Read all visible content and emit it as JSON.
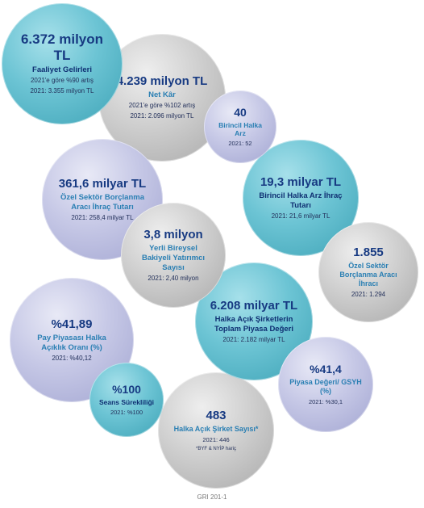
{
  "bubbles": [
    {
      "name": "faaliyet-gelirleri",
      "value": "6.372 milyon TL",
      "label": "Faaliyet Gelirleri",
      "lines": [
        "2021'e göre %90 artış",
        "2021: 3.355 milyon TL"
      ],
      "note": "",
      "style": "teal"
    },
    {
      "name": "net-kar",
      "value": "4.239 milyon TL",
      "label": "Net Kâr",
      "lines": [
        "2021'e göre %102 artış",
        "2021: 2.096 milyon TL"
      ],
      "note": "",
      "style": "grey"
    },
    {
      "name": "birincil-halka-arz",
      "value": "40",
      "label": "Birincil Halka Arz",
      "lines": [
        "2021: 52"
      ],
      "note": "",
      "style": "lav"
    },
    {
      "name": "ozel-sektor-borclanma-tutari",
      "value": "361,6 milyar TL",
      "label": "Özel Sektör Borçlanma Aracı İhraç Tutarı",
      "lines": [
        "2021: 258,4 milyar TL"
      ],
      "note": "",
      "style": "lav"
    },
    {
      "name": "birincil-halka-arz-ihrac-tutari",
      "value": "19,3 milyar TL",
      "label": "Birincil Halka Arz İhraç Tutarı",
      "lines": [
        "2021: 21,6 milyar TL"
      ],
      "note": "",
      "style": "teal"
    },
    {
      "name": "yerli-bireysel-yatirimci",
      "value": "3,8 milyon",
      "label": "Yerli Bireysel Bakiyeli Yatırımcı Sayısı",
      "lines": [
        "2021: 2,40 milyon"
      ],
      "note": "",
      "style": "grey"
    },
    {
      "name": "ozel-sektor-borclanma-ihraci",
      "value": "1.855",
      "label": "Özel Sektör Borçlanma Aracı İhracı",
      "lines": [
        "2021: 1.294"
      ],
      "note": "",
      "style": "grey"
    },
    {
      "name": "pay-piyasasi-halka-aciklik",
      "value": "%41,89",
      "label": "Pay Piyasası Halka Açıklık Oranı (%)",
      "lines": [
        "2021: %40,12"
      ],
      "note": "",
      "style": "lav"
    },
    {
      "name": "halka-acik-piyasa-degeri",
      "value": "6.208 milyar TL",
      "label": "Halka Açık Şirketlerin Toplam Piyasa Değeri",
      "lines": [
        "2021: 2.182 milyar TL"
      ],
      "note": "",
      "style": "teal"
    },
    {
      "name": "piyasa-degeri-gsyh",
      "value": "%41,4",
      "label": "Piyasa Değeri/ GSYH (%)",
      "lines": [
        "2021: %30,1"
      ],
      "note": "",
      "style": "lav"
    },
    {
      "name": "seans-surekliligi",
      "value": "%100",
      "label": "Seans Sürekliliği",
      "lines": [
        "2021: %100"
      ],
      "note": "",
      "style": "teal"
    },
    {
      "name": "halka-acik-sirket-sayisi",
      "value": "483",
      "label": "Halka Açık Şirket Sayısı*",
      "lines": [
        "2021: 446"
      ],
      "note": "*BYF & NYİP hariç",
      "style": "grey"
    }
  ],
  "footer": "GRI 201-1"
}
